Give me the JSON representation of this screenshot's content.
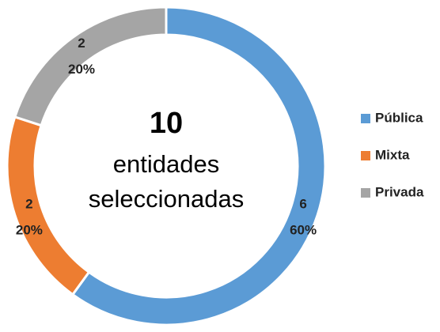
{
  "chart_data": {
    "type": "donut",
    "categories": [
      "Pública",
      "Mixta",
      "Privada"
    ],
    "values": [
      6,
      2,
      2
    ],
    "shares": {
      "values": [
        60,
        20,
        20
      ],
      "value_labels": [
        "60%",
        "20%",
        "20%"
      ]
    },
    "colors": [
      "#5b9bd5",
      "#ed7d31",
      "#a5a5a5"
    ],
    "center_value": 10,
    "center_text": [
      "entidades",
      "seleccionadas"
    ],
    "legend": "right"
  }
}
